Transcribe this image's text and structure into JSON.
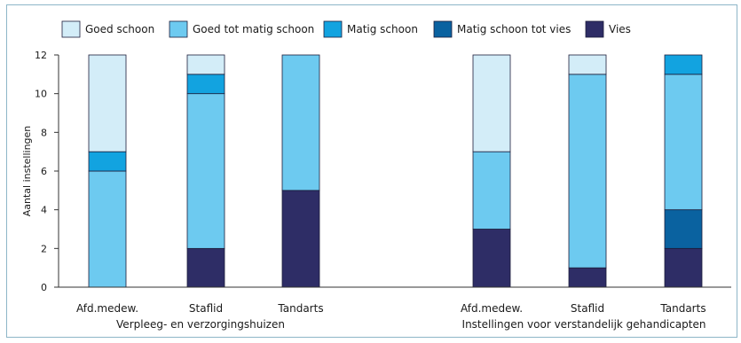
{
  "chart_data": {
    "type": "bar",
    "stacked": true,
    "ylabel": "Aantal instellingen",
    "ylim": [
      0,
      12
    ],
    "yticks": [
      0,
      2,
      4,
      6,
      8,
      10,
      12
    ],
    "groups": [
      "Verpleeg- en verzorgingshuizen",
      "Instellingen voor verstandelijk gehandicapten"
    ],
    "categories": [
      "Afd.medew.",
      "Staflid",
      "Tandarts",
      "Afd.medew.",
      "Staflid",
      "Tandarts"
    ],
    "category_group": [
      0,
      0,
      0,
      1,
      1,
      1
    ],
    "series": [
      {
        "name": "Vies",
        "color": "#2e2d66",
        "values": [
          0,
          2,
          5,
          3,
          1,
          2
        ]
      },
      {
        "name": "Matig schoon tot vies",
        "color": "#0a62a0",
        "values": [
          0,
          0,
          0,
          0,
          0,
          2
        ]
      },
      {
        "name": "Goed tot matig schoon",
        "color": "#6dcaf0",
        "values": [
          6,
          8,
          7,
          4,
          10,
          7
        ]
      },
      {
        "name": "Matig schoon",
        "color": "#12a3e0",
        "values": [
          1,
          1,
          0,
          0,
          0,
          1
        ]
      },
      {
        "name": "Goed schoon",
        "color": "#d3edf8",
        "values": [
          5,
          1,
          0,
          5,
          1,
          0
        ]
      }
    ],
    "legend": {
      "placement": "top",
      "order": [
        "Goed schoon",
        "Goed tot matig schoon",
        "Matig schoon",
        "Matig schoon tot vies",
        "Vies"
      ]
    }
  },
  "colors": {
    "frame": "#8eb6c8",
    "axis": "#333333",
    "bar_outline": "#1c1c3a"
  }
}
